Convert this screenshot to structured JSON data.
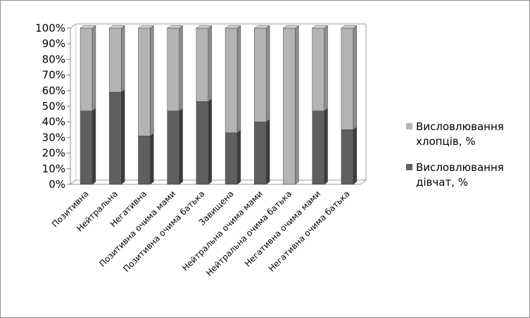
{
  "chart_data": {
    "type": "bar",
    "stacked": true,
    "percent_stacked": true,
    "three_d": true,
    "categories": [
      "Позитивна",
      "Нейтральна",
      "Негативна",
      "Позитивна очима мами",
      "Позитивна очима батька",
      "Завищена",
      "Нейтральна очима мами",
      "Нейтральна очима батька",
      "Негативна очима мами",
      "Негативна очима батька"
    ],
    "series": [
      {
        "name": "Висловлювання дівчат, %",
        "color": "#5f5f5f",
        "top_color": "#4a4a4a",
        "side_color": "#3c3c3c",
        "values": [
          47,
          59,
          31,
          47,
          53,
          33,
          40,
          0,
          47,
          35
        ]
      },
      {
        "name": "Висловлювання хлопців, %",
        "color": "#b4b4b4",
        "top_color": "#d4d4d4",
        "side_color": "#8e8e8e",
        "values": [
          53,
          41,
          69,
          53,
          47,
          67,
          60,
          100,
          53,
          65
        ]
      }
    ],
    "yticks": [
      "0%",
      "10%",
      "20%",
      "30%",
      "40%",
      "50%",
      "60%",
      "70%",
      "80%",
      "90%",
      "100%"
    ],
    "ylim": [
      0,
      100
    ],
    "grid": false,
    "legend_position": "right",
    "legend": [
      {
        "line1": "Висловлювання",
        "line2": "хлопців, %",
        "color": "#b4b4b4"
      },
      {
        "line1": "Висловлювання",
        "line2": "дівчат, %",
        "color": "#5f5f5f"
      }
    ]
  }
}
